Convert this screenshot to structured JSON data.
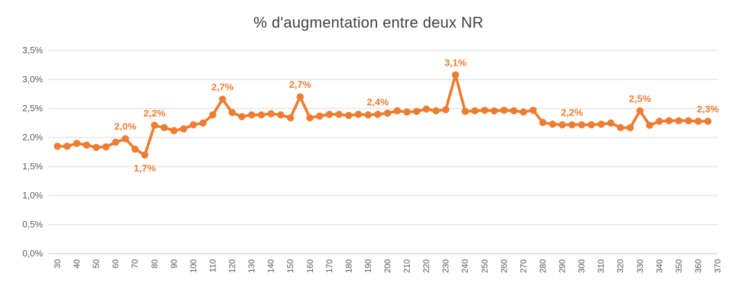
{
  "chart_data": {
    "type": "line",
    "title": "% d'augmentation entre deux NR",
    "xlabel": "",
    "ylabel": "",
    "ylim": [
      0,
      3.5
    ],
    "xlim": [
      30,
      370
    ],
    "grid": true,
    "legend": "none",
    "color": "#ED7D31",
    "y_ticks": [
      "0,0%",
      "0,5%",
      "1,0%",
      "1,5%",
      "2,0%",
      "2,5%",
      "3,0%",
      "3,5%"
    ],
    "x_ticks": [
      "30",
      "40",
      "50",
      "60",
      "70",
      "80",
      "90",
      "100",
      "110",
      "120",
      "130",
      "140",
      "150",
      "160",
      "170",
      "180",
      "190",
      "200",
      "210",
      "220",
      "230",
      "240",
      "250",
      "260",
      "270",
      "280",
      "290",
      "300",
      "310",
      "320",
      "330",
      "340",
      "350",
      "360",
      "370"
    ],
    "series": [
      {
        "x": [
          30,
          35,
          40,
          45,
          50,
          55,
          60,
          65,
          70,
          75,
          80,
          85,
          90,
          95,
          100,
          105,
          110,
          115,
          120,
          125,
          130,
          135,
          140,
          145,
          150,
          155,
          160,
          165,
          170,
          175,
          180,
          185,
          190,
          195,
          200,
          205,
          210,
          215,
          220,
          225,
          230,
          235,
          240,
          245,
          250,
          255,
          260,
          265,
          270,
          275,
          280,
          285,
          290,
          295,
          300,
          305,
          310,
          315,
          320,
          325,
          330,
          335,
          340,
          345,
          350,
          355,
          360,
          365
        ],
        "values": [
          1.85,
          1.85,
          1.9,
          1.87,
          1.83,
          1.84,
          1.92,
          1.98,
          1.8,
          1.7,
          2.21,
          2.17,
          2.12,
          2.15,
          2.22,
          2.25,
          2.39,
          2.66,
          2.43,
          2.36,
          2.39,
          2.39,
          2.41,
          2.39,
          2.34,
          2.7,
          2.34,
          2.37,
          2.4,
          2.4,
          2.38,
          2.4,
          2.39,
          2.4,
          2.42,
          2.46,
          2.44,
          2.45,
          2.49,
          2.46,
          2.48,
          3.08,
          2.45,
          2.46,
          2.47,
          2.46,
          2.47,
          2.46,
          2.44,
          2.47,
          2.26,
          2.23,
          2.22,
          2.22,
          2.22,
          2.22,
          2.23,
          2.25,
          2.17,
          2.17,
          2.46,
          2.21,
          2.28,
          2.29,
          2.29,
          2.29,
          2.28,
          2.28
        ]
      }
    ],
    "annotations": [
      {
        "x": 65,
        "y": 1.98,
        "text": "2,0%",
        "pos": "above"
      },
      {
        "x": 75,
        "y": 1.7,
        "text": "1,7%",
        "pos": "below"
      },
      {
        "x": 80,
        "y": 2.21,
        "text": "2,2%",
        "pos": "above"
      },
      {
        "x": 115,
        "y": 2.66,
        "text": "2,7%",
        "pos": "above"
      },
      {
        "x": 155,
        "y": 2.7,
        "text": "2,7%",
        "pos": "above"
      },
      {
        "x": 195,
        "y": 2.4,
        "text": "2,4%",
        "pos": "above"
      },
      {
        "x": 235,
        "y": 3.08,
        "text": "3,1%",
        "pos": "above"
      },
      {
        "x": 295,
        "y": 2.22,
        "text": "2,2%",
        "pos": "above"
      },
      {
        "x": 330,
        "y": 2.46,
        "text": "2,5%",
        "pos": "above"
      },
      {
        "x": 365,
        "y": 2.28,
        "text": "2,3%",
        "pos": "above"
      }
    ]
  }
}
